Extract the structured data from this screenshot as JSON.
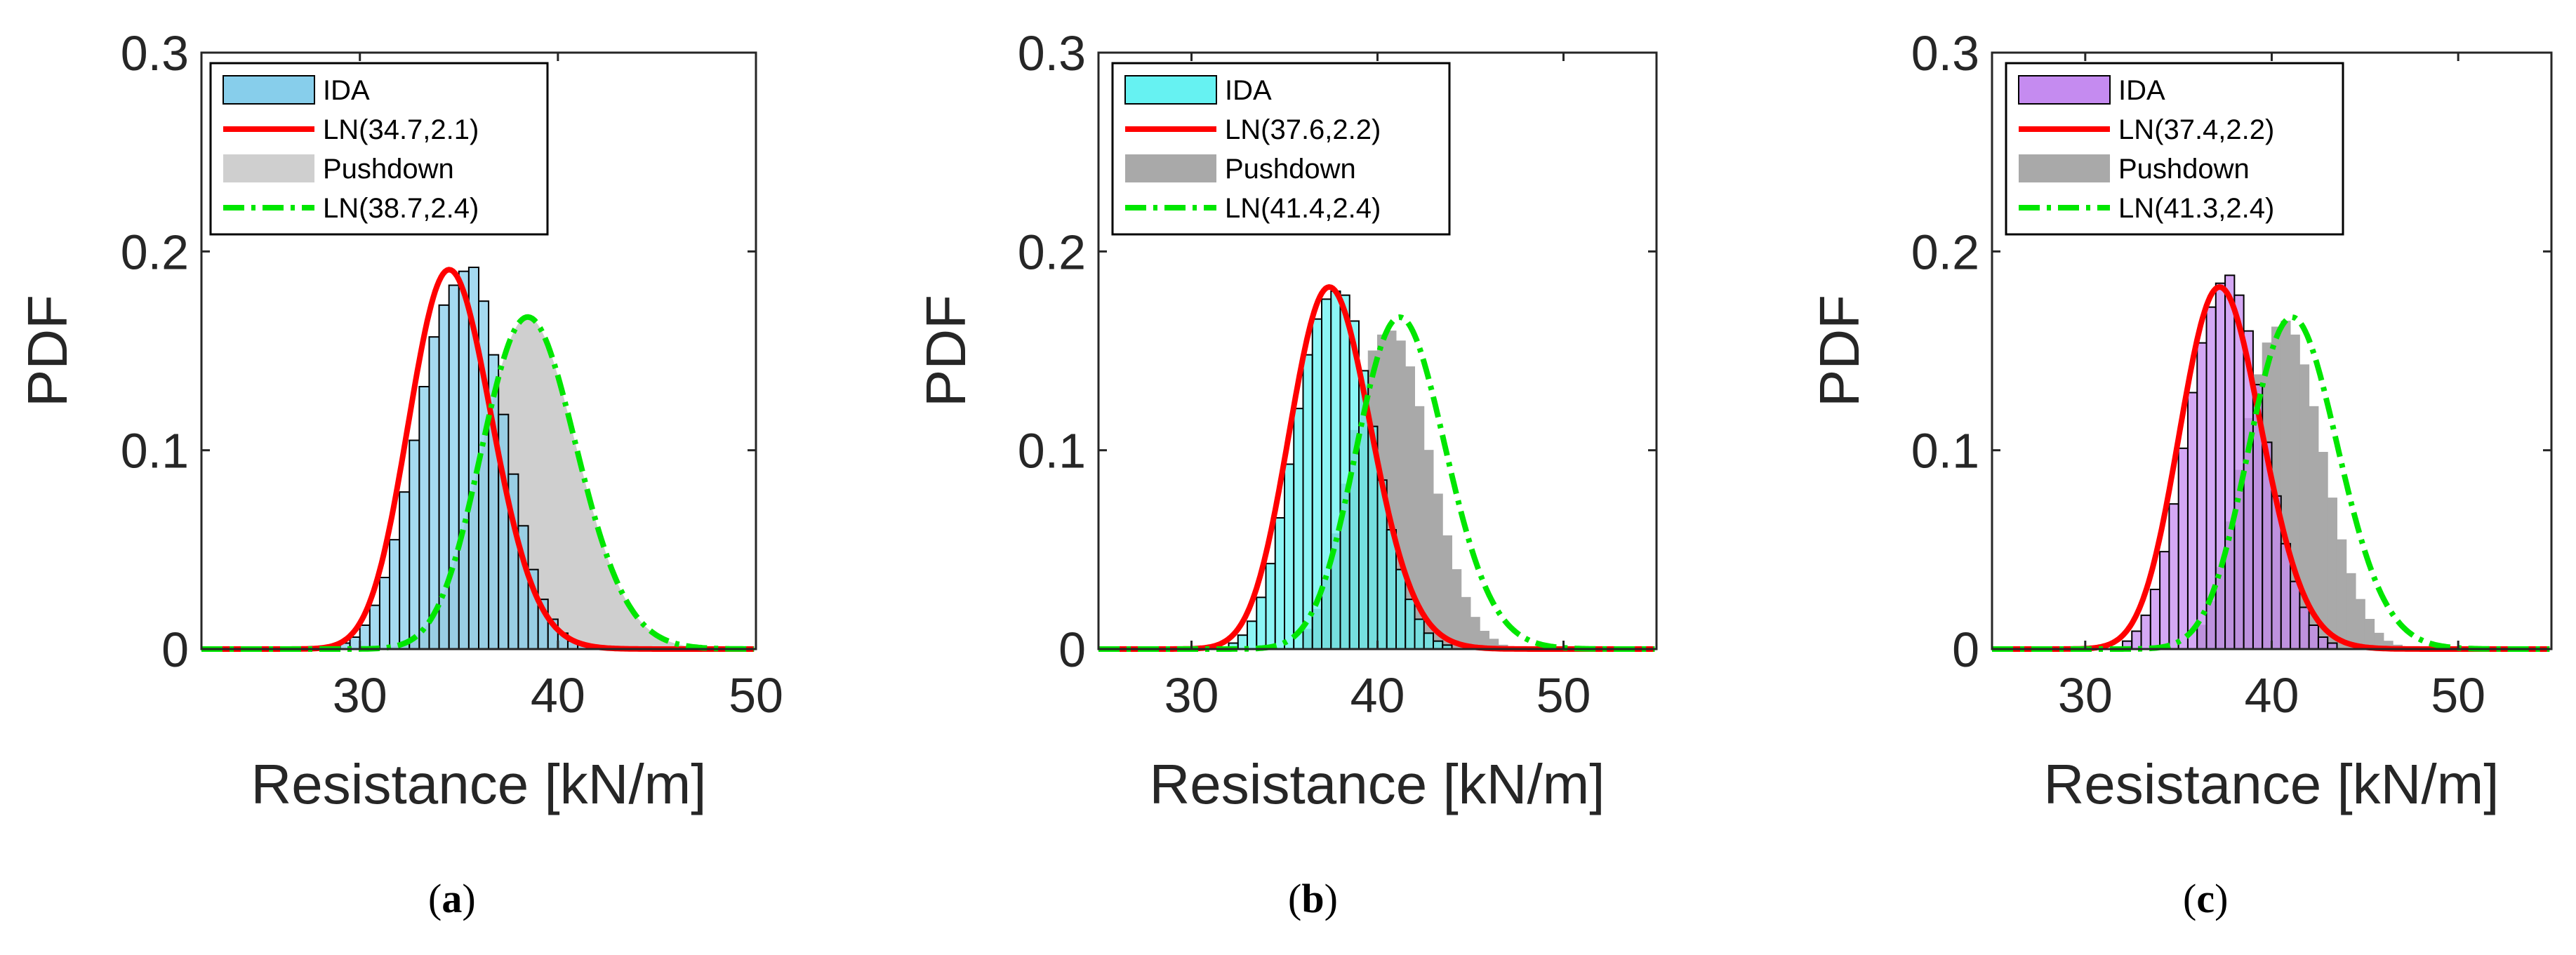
{
  "chart_data": [
    {
      "type": "histogram+line",
      "panel": "a",
      "caption_letter": "a",
      "xlabel": "Resistance [kN/m]",
      "ylabel": "PDF",
      "xlim": [
        22,
        50
      ],
      "ylim": [
        0,
        0.3
      ],
      "xticks": [
        "30",
        "40",
        "50"
      ],
      "yticks": [
        "0",
        "0.1",
        "0.2",
        "0.3"
      ],
      "ida_color": "#87CEEB",
      "pushdown_color": "#CFCFCF",
      "legend": [
        "IDA",
        "LN(34.7,2.1)",
        "Pushdown",
        "LN(38.7,2.4)"
      ],
      "ida_hist": {
        "start": 29.0,
        "bin": 0.5,
        "values": [
          0.003,
          0.006,
          0.012,
          0.022,
          0.036,
          0.055,
          0.079,
          0.105,
          0.132,
          0.157,
          0.173,
          0.183,
          0.19,
          0.192,
          0.175,
          0.148,
          0.118,
          0.088,
          0.062,
          0.04,
          0.025,
          0.015,
          0.008,
          0.004,
          0.002
        ]
      },
      "ida_fit": {
        "mu": 34.7,
        "sigma": 2.1
      },
      "pushdown_fit": {
        "mu": 38.7,
        "sigma": 2.4
      }
    },
    {
      "type": "histogram+line",
      "panel": "b",
      "caption_letter": "b",
      "xlabel": "Resistance [kN/m]",
      "ylabel": "PDF",
      "xlim": [
        25,
        55
      ],
      "ylim": [
        0,
        0.3
      ],
      "xticks": [
        "30",
        "40",
        "50"
      ],
      "yticks": [
        "0",
        "0.1",
        "0.2",
        "0.3"
      ],
      "ida_color": "#66F2F2",
      "pushdown_color": "#A9A9A9",
      "legend": [
        "IDA",
        "LN(37.6,2.2)",
        "Pushdown",
        "LN(41.4,2.4)"
      ],
      "ida_hist": {
        "start": 32.0,
        "bin": 0.5,
        "values": [
          0.003,
          0.007,
          0.014,
          0.026,
          0.043,
          0.066,
          0.093,
          0.121,
          0.148,
          0.166,
          0.176,
          0.18,
          0.178,
          0.165,
          0.14,
          0.112,
          0.085,
          0.06,
          0.04,
          0.025,
          0.015,
          0.008,
          0.004,
          0.002
        ]
      },
      "pushdown_hist": {
        "start": 36.0,
        "bin": 0.5,
        "values": [
          0.01,
          0.02,
          0.036,
          0.058,
          0.083,
          0.11,
          0.133,
          0.15,
          0.158,
          0.16,
          0.155,
          0.142,
          0.122,
          0.1,
          0.078,
          0.057,
          0.04,
          0.026,
          0.016,
          0.009,
          0.005,
          0.002
        ]
      },
      "ida_fit": {
        "mu": 37.6,
        "sigma": 2.2
      },
      "pushdown_fit": {
        "mu": 41.4,
        "sigma": 2.4
      }
    },
    {
      "type": "histogram+line",
      "panel": "c",
      "caption_letter": "c",
      "xlabel": "Resistance [kN/m]",
      "ylabel": "PDF",
      "xlim": [
        25,
        55
      ],
      "ylim": [
        0,
        0.3
      ],
      "xticks": [
        "30",
        "40",
        "50"
      ],
      "yticks": [
        "0",
        "0.1",
        "0.2",
        "0.3"
      ],
      "ida_color": "#C58BF0",
      "pushdown_color": "#A9A9A9",
      "legend": [
        "IDA",
        "LN(37.4,2.2)",
        "Pushdown",
        "LN(41.3,2.4)"
      ],
      "ida_hist": {
        "start": 32.0,
        "bin": 0.5,
        "values": [
          0.004,
          0.009,
          0.017,
          0.03,
          0.049,
          0.073,
          0.101,
          0.129,
          0.154,
          0.172,
          0.184,
          0.188,
          0.178,
          0.16,
          0.133,
          0.104,
          0.077,
          0.053,
          0.034,
          0.021,
          0.012,
          0.006,
          0.003
        ]
      },
      "pushdown_hist": {
        "start": 36.0,
        "bin": 0.5,
        "values": [
          0.012,
          0.024,
          0.041,
          0.064,
          0.09,
          0.116,
          0.138,
          0.154,
          0.162,
          0.165,
          0.158,
          0.143,
          0.122,
          0.099,
          0.076,
          0.055,
          0.038,
          0.025,
          0.015,
          0.008,
          0.004,
          0.002
        ]
      },
      "ida_fit": {
        "mu": 37.4,
        "sigma": 2.2
      },
      "pushdown_fit": {
        "mu": 41.3,
        "sigma": 2.4
      }
    }
  ],
  "colors": {
    "ida_fit_line": "#FF0000",
    "pushdown_fit_line": "#00E600",
    "axis": "#262626"
  }
}
